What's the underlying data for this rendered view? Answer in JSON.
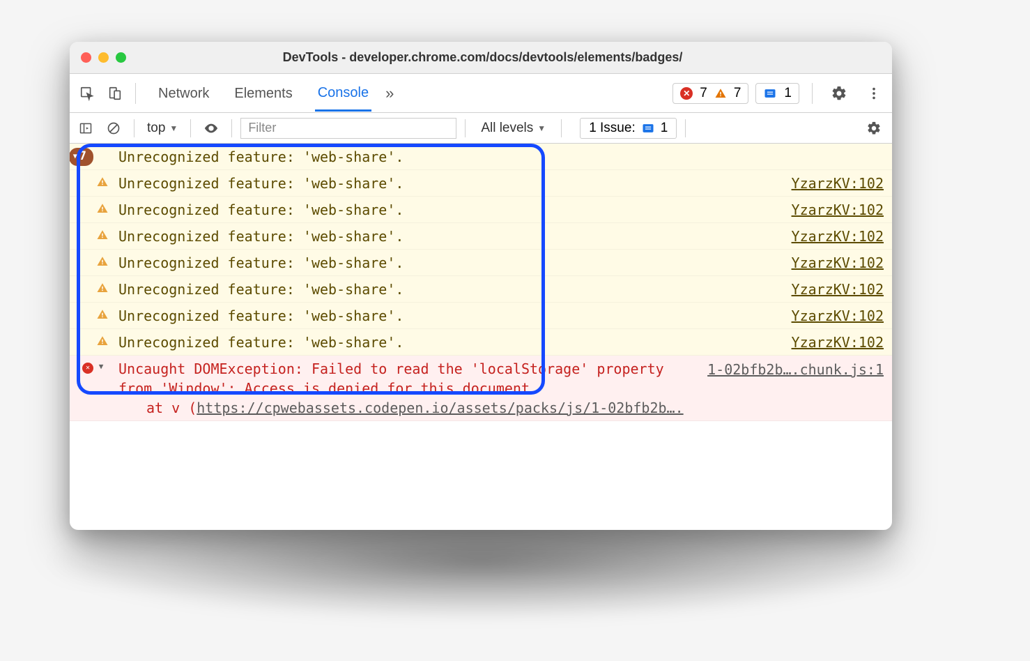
{
  "window": {
    "title": "DevTools - developer.chrome.com/docs/devtools/elements/badges/",
    "traffic": {
      "close": "#ff5f57",
      "min": "#febc2e",
      "max": "#28c840"
    }
  },
  "main_toolbar": {
    "tabs": [
      "Network",
      "Elements",
      "Console"
    ],
    "active_tab": "Console",
    "more_glyph": "»",
    "errors": {
      "count": "7",
      "color": "#d93025"
    },
    "warnings": {
      "count": "7",
      "color": "#e37400"
    },
    "issues": {
      "count": "1",
      "color": "#1a73e8"
    }
  },
  "sub_toolbar": {
    "context": "top",
    "filter_placeholder": "Filter",
    "levels_label": "All levels",
    "issues_label": "1 Issue:",
    "issues_count": "1"
  },
  "console": {
    "group": {
      "count": "7",
      "message": "Unrecognized feature: 'web-share'."
    },
    "warnings": [
      {
        "message": "Unrecognized feature: 'web-share'.",
        "source": "YzarzKV:102"
      },
      {
        "message": "Unrecognized feature: 'web-share'.",
        "source": "YzarzKV:102"
      },
      {
        "message": "Unrecognized feature: 'web-share'.",
        "source": "YzarzKV:102"
      },
      {
        "message": "Unrecognized feature: 'web-share'.",
        "source": "YzarzKV:102"
      },
      {
        "message": "Unrecognized feature: 'web-share'.",
        "source": "YzarzKV:102"
      },
      {
        "message": "Unrecognized feature: 'web-share'.",
        "source": "YzarzKV:102"
      },
      {
        "message": "Unrecognized feature: 'web-share'.",
        "source": "YzarzKV:102"
      }
    ],
    "error": {
      "message": "Uncaught DOMException: Failed to read the 'localStorage' property from 'Window': Access is denied for this document.",
      "source": "1-02bfb2b….chunk.js:1",
      "stack_prefix": "at v (",
      "stack_link": "https://cpwebassets.codepen.io/assets/packs/js/1-02bfb2b….",
      "disclosure": "▼"
    },
    "highlight_color": "#1549ff"
  },
  "colors": {
    "warn_bg": "#fffbe6",
    "warn_text": "#5c4b00",
    "err_bg": "#fff0f0",
    "err_text": "#c5221f",
    "accent": "#1a73e8"
  }
}
